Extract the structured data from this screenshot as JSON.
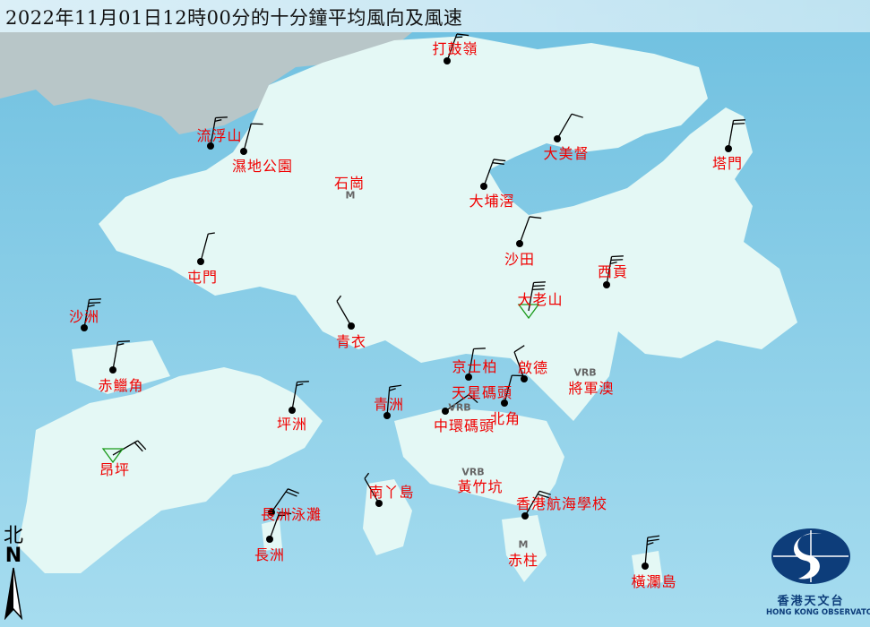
{
  "title": "2022年11月01日12時00分的十分鐘平均風向及風速",
  "colors": {
    "sea": "#8fd0e8",
    "land": "#e4f8f5",
    "label": "#f00000",
    "barb": "#000000",
    "logo": "#0d3d7a"
  },
  "stations": [
    {
      "name": "打鼓嶺",
      "type": "dot",
      "dir": 20,
      "speed": 15
    },
    {
      "name": "流浮山",
      "type": "dot",
      "dir": 10,
      "speed": 15
    },
    {
      "name": "濕地公園",
      "type": "dot",
      "dir": 15,
      "speed": 10
    },
    {
      "name": "石崗",
      "type": "missing",
      "marker": "M"
    },
    {
      "name": "大美督",
      "type": "dot",
      "dir": 30,
      "speed": 10
    },
    {
      "name": "塔門",
      "type": "dot",
      "dir": 10,
      "speed": 20
    },
    {
      "name": "大埔滘",
      "type": "dot",
      "dir": 20,
      "speed": 20
    },
    {
      "name": "沙田",
      "type": "dot",
      "dir": 20,
      "speed": 10
    },
    {
      "name": "屯門",
      "type": "dot",
      "dir": 15,
      "speed": 5
    },
    {
      "name": "西貢",
      "type": "dot",
      "dir": 10,
      "speed": 25
    },
    {
      "name": "大老山",
      "type": "triangle",
      "dir": 10,
      "speed": 30
    },
    {
      "name": "沙洲",
      "type": "dot",
      "dir": 10,
      "speed": 25
    },
    {
      "name": "青衣",
      "type": "dot",
      "dir": 330,
      "speed": 5
    },
    {
      "name": "赤鱲角",
      "type": "dot",
      "dir": 10,
      "speed": 15
    },
    {
      "name": "京士柏",
      "type": "dot",
      "dir": 10,
      "speed": 10
    },
    {
      "name": "啟德",
      "type": "dot",
      "dir": 340,
      "speed": 10
    },
    {
      "name": "將軍澳",
      "type": "variable",
      "marker": "VRB"
    },
    {
      "name": "天星碼頭",
      "type": "dot",
      "dir": 55,
      "speed": 10
    },
    {
      "name": "中環碼頭",
      "type": "variable",
      "marker": "VRB"
    },
    {
      "name": "北角",
      "type": "dot",
      "dir": 15,
      "speed": 10
    },
    {
      "name": "坪洲",
      "type": "dot",
      "dir": 10,
      "speed": 15
    },
    {
      "name": "青洲",
      "type": "dot",
      "dir": 5,
      "speed": 15
    },
    {
      "name": "昂坪",
      "type": "triangle",
      "dir": 60,
      "speed": 20
    },
    {
      "name": "南丫島",
      "type": "dot",
      "dir": 330,
      "speed": 5
    },
    {
      "name": "黃竹坑",
      "type": "variable",
      "marker": "VRB"
    },
    {
      "name": "香港航海學校",
      "type": "dot",
      "dir": 30,
      "speed": 20
    },
    {
      "name": "長洲泳灘",
      "type": "dot",
      "dir": 35,
      "speed": 20
    },
    {
      "name": "長洲",
      "type": "dot",
      "dir": 20,
      "speed": 15
    },
    {
      "name": "赤柱",
      "type": "missing",
      "marker": "M"
    },
    {
      "name": "橫瀾島",
      "type": "dot",
      "dir": 5,
      "speed": 25
    }
  ],
  "north_arrow": {
    "char": "北",
    "letter": "N"
  },
  "logo": {
    "name_zh": "香港天文台",
    "name_en": "HONG KONG OBSERVATORY"
  }
}
